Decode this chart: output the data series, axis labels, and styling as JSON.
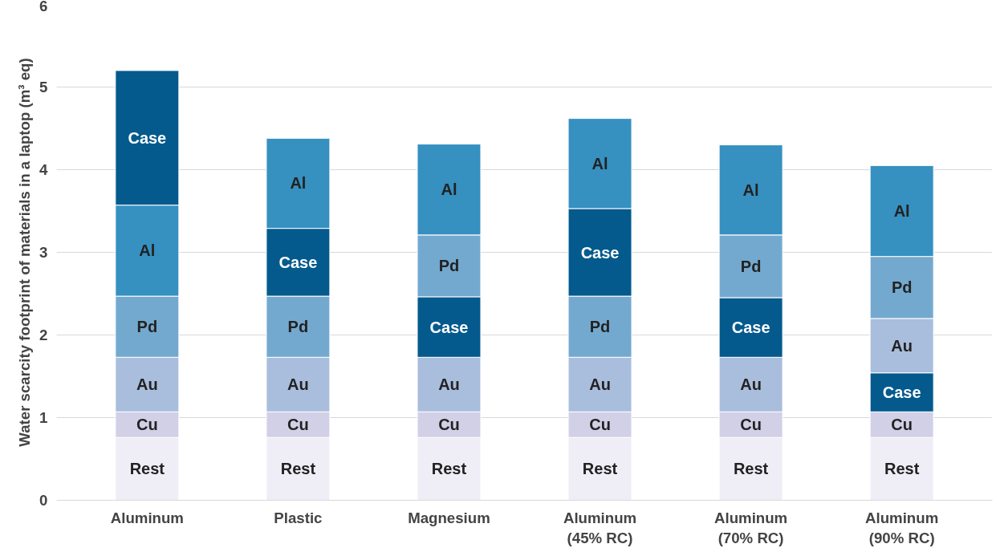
{
  "chart_data": {
    "type": "bar",
    "ylabel": "Water scarcity footprint of materials in a laptop (m³ eq)",
    "categories": [
      "Aluminum",
      "Plastic",
      "Magnesium",
      "Aluminum\n(45% RC)",
      "Aluminum\n(70% RC)",
      "Aluminum\n(90% RC)"
    ],
    "series": [
      {
        "name": "Rest",
        "color": "#efedf5",
        "values": [
          0.76,
          0.76,
          0.76,
          0.76,
          0.76,
          0.76
        ],
        "base": [
          0,
          0,
          0,
          0,
          0,
          0
        ]
      },
      {
        "name": "Cu",
        "color": "#d2d0e6",
        "values": [
          0.31,
          0.31,
          0.31,
          0.31,
          0.31,
          0.31
        ],
        "base": [
          0.76,
          0.76,
          0.76,
          0.76,
          0.76,
          0.76
        ]
      },
      {
        "name": "Au",
        "color": "#a9bddc",
        "values": [
          0.66,
          0.66,
          0.66,
          0.66,
          0.66,
          0.66
        ],
        "base": [
          1.07,
          1.07,
          1.07,
          1.07,
          1.07,
          1.54
        ]
      },
      {
        "name": "Pd",
        "color": "#74a9cf",
        "values": [
          0.74,
          0.74,
          0.75,
          0.74,
          0.76,
          0.75
        ],
        "base": [
          1.73,
          1.73,
          2.46,
          1.73,
          2.45,
          2.2
        ]
      },
      {
        "name": "Case",
        "color": "#045a8d",
        "values": [
          1.63,
          0.82,
          0.73,
          1.06,
          0.72,
          0.47
        ],
        "base": [
          3.57,
          2.47,
          1.73,
          2.47,
          1.73,
          1.07
        ]
      },
      {
        "name": "Al",
        "color": "#3690c0",
        "values": [
          1.1,
          1.09,
          1.1,
          1.09,
          1.09,
          1.1
        ],
        "base": [
          2.47,
          3.29,
          3.21,
          3.53,
          3.21,
          2.95
        ]
      }
    ],
    "ylim": [
      0,
      6
    ],
    "yticks": [
      0,
      1,
      2,
      3,
      4,
      5,
      6
    ],
    "grid": "y"
  }
}
